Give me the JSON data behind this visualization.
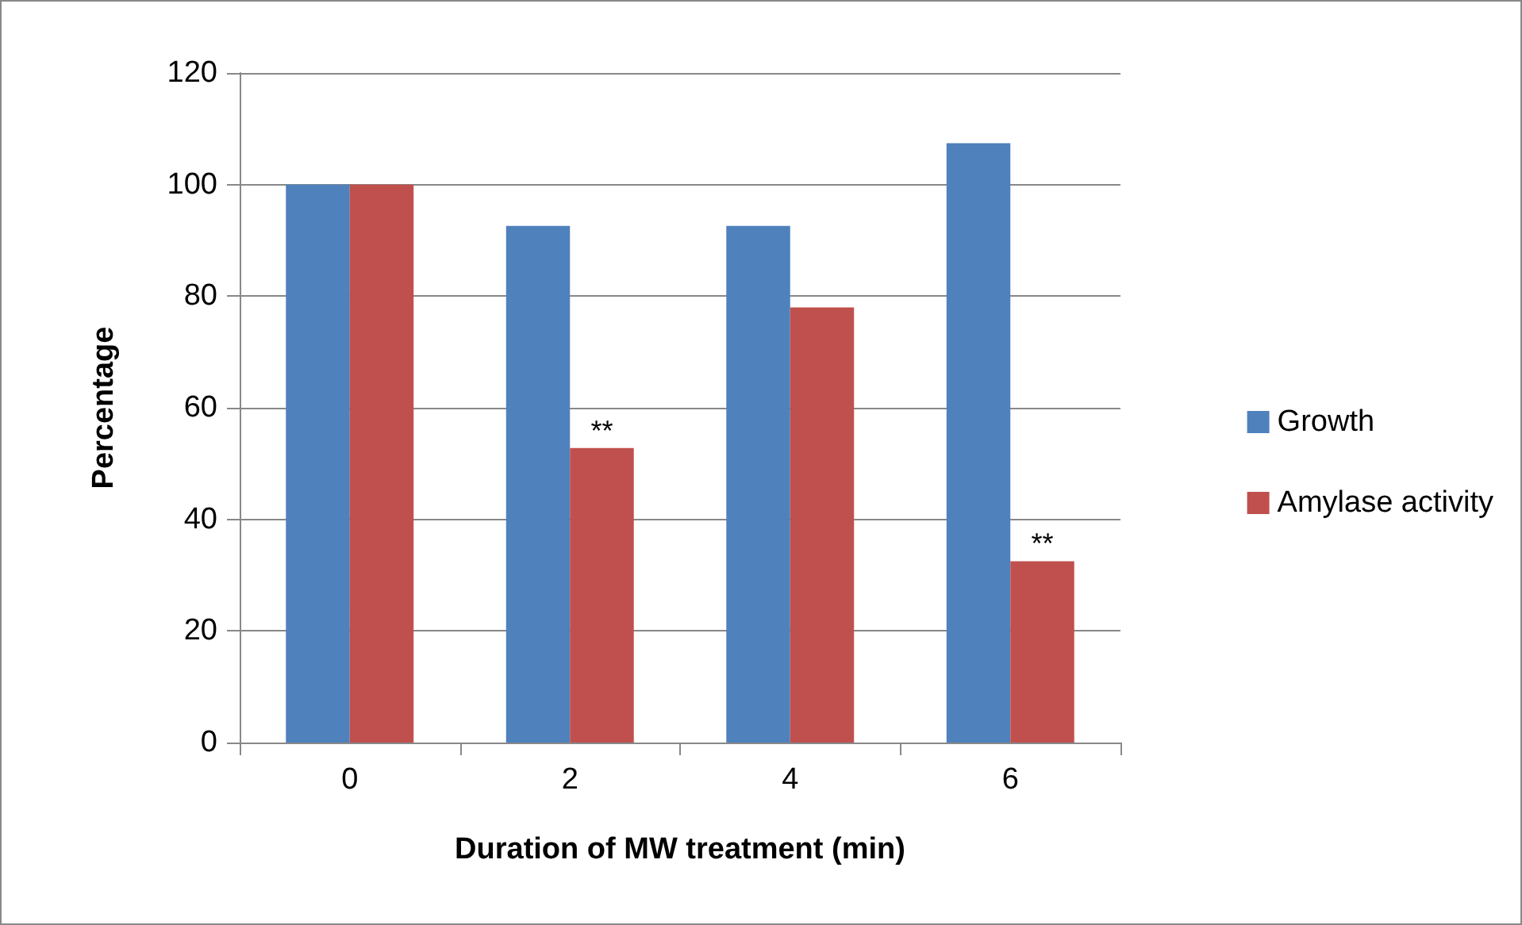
{
  "chart_data": {
    "type": "bar",
    "xlabel": "Duration of MW treatment (min)",
    "ylabel": "Percentage",
    "categories": [
      "0",
      "2",
      "4",
      "6"
    ],
    "series": [
      {
        "name": "Growth",
        "color": "#4f81bd",
        "values": [
          100,
          92.6,
          92.6,
          107.4
        ]
      },
      {
        "name": "Amylase activity",
        "color": "#c0504d",
        "values": [
          100,
          52.8,
          78,
          32.5
        ]
      }
    ],
    "ylim": [
      0,
      120
    ],
    "yticks": [
      0,
      20,
      40,
      60,
      80,
      100,
      120
    ],
    "grid": "y",
    "legend": "right",
    "annotations": [
      {
        "text": "**",
        "x": "2",
        "y": 52.8
      },
      {
        "text": "**",
        "x": "6",
        "y": 32.5
      }
    ]
  }
}
